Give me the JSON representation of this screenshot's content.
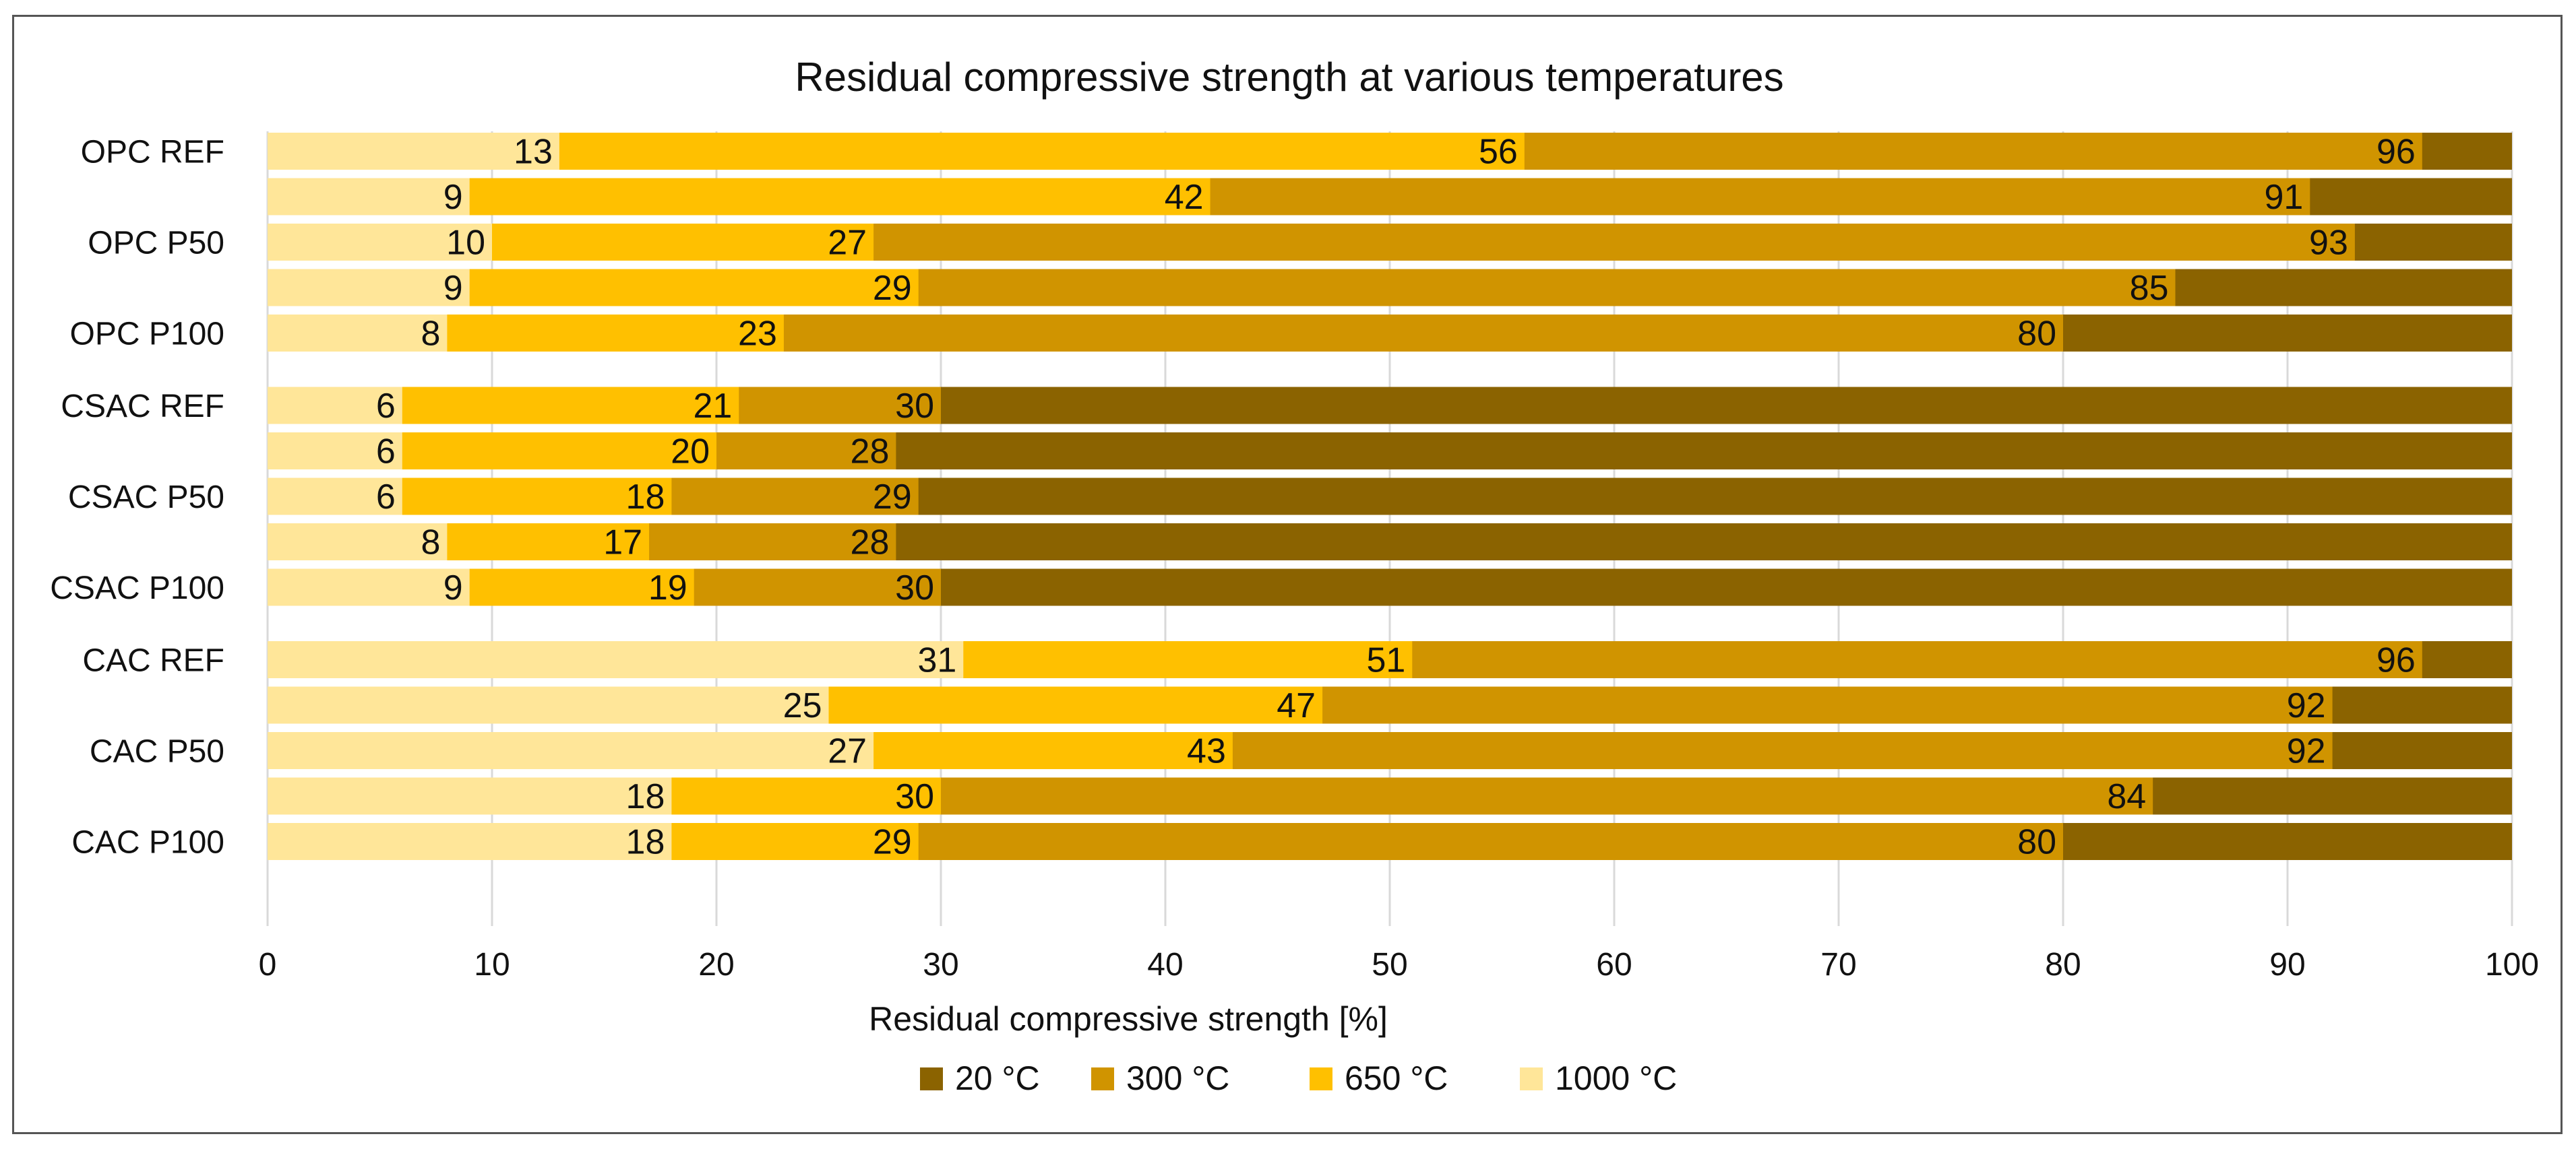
{
  "chart_data": {
    "type": "bar",
    "orientation": "horizontal",
    "title": "Residual compressive strength at various temperatures",
    "xlabel": "Residual compressive strength [%]",
    "ylabel": "",
    "xlim": [
      0,
      100
    ],
    "xticks": [
      0,
      10,
      20,
      30,
      40,
      50,
      60,
      70,
      80,
      90,
      100
    ],
    "grid": true,
    "legend_position": "bottom",
    "layering": "overlapping bars; 20 °C drawn at 100%, cooler-temperature bars drawn on top",
    "rows": [
      {
        "label": "OPC REF",
        "group": 0
      },
      {
        "label": "",
        "group": 0
      },
      {
        "label": "OPC P50",
        "group": 0
      },
      {
        "label": "",
        "group": 0
      },
      {
        "label": "OPC P100",
        "group": 0
      },
      {
        "label": "CSAC REF",
        "group": 1
      },
      {
        "label": "",
        "group": 1
      },
      {
        "label": "CSAC P50",
        "group": 1
      },
      {
        "label": "",
        "group": 1
      },
      {
        "label": "CSAC P100",
        "group": 1
      },
      {
        "label": "CAC REF",
        "group": 2
      },
      {
        "label": "",
        "group": 2
      },
      {
        "label": "CAC P50",
        "group": 2
      },
      {
        "label": "",
        "group": 2
      },
      {
        "label": "CAC P100",
        "group": 2
      }
    ],
    "series": [
      {
        "name": "20 °C",
        "color": "#8B6300",
        "values": [
          100,
          100,
          100,
          100,
          100,
          100,
          100,
          100,
          100,
          100,
          100,
          100,
          100,
          100,
          100
        ],
        "show_labels": false
      },
      {
        "name": "300 °C",
        "color": "#D09400",
        "values": [
          96,
          91,
          93,
          85,
          80,
          30,
          28,
          29,
          28,
          30,
          96,
          92,
          92,
          84,
          80
        ],
        "show_labels": true
      },
      {
        "name": "650 °C",
        "color": "#FFC000",
        "values": [
          56,
          42,
          27,
          29,
          23,
          21,
          20,
          18,
          17,
          19,
          51,
          47,
          43,
          30,
          29
        ],
        "show_labels": true
      },
      {
        "name": "1000 °C",
        "color": "#FFE699",
        "values": [
          13,
          9,
          10,
          9,
          8,
          6,
          6,
          6,
          8,
          9,
          31,
          25,
          27,
          18,
          18
        ],
        "show_labels": true
      }
    ]
  }
}
